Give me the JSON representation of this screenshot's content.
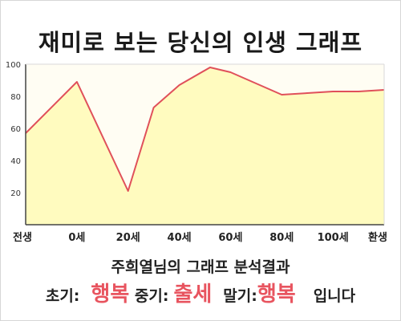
{
  "title": "재미로 보는 당신의 인생 그래프",
  "subtitle": "주희열님의 그래프 분석결과",
  "result": {
    "early_label": "초기:",
    "early_value": "행복",
    "mid_label": "중기:",
    "mid_value": "출세",
    "late_label": "말기:",
    "late_value": "행복",
    "suffix": "입니다"
  },
  "colors": {
    "area_fill": "#fffbbf",
    "plot_bg": "#fffdf3",
    "line": "#e0505a",
    "value_text": "#e8545f"
  },
  "chart_data": {
    "type": "area",
    "title": "재미로 보는 당신의 인생 그래프",
    "xlabel": "",
    "ylabel": "",
    "categories": [
      "전생",
      "0세",
      "20세",
      "40세",
      "60세",
      "80세",
      "100세",
      "환생"
    ],
    "ylim": [
      0,
      100
    ],
    "yticks": [
      20,
      40,
      60,
      80,
      100
    ],
    "grid": false,
    "legend": "none",
    "series": [
      {
        "x": [
          0,
          1,
          2,
          2.5,
          3,
          3.6,
          4,
          5,
          5.5,
          6,
          6.5,
          7
        ],
        "values": [
          57,
          89,
          21,
          73,
          87,
          98,
          95,
          81,
          82,
          83,
          83,
          84
        ]
      }
    ]
  }
}
